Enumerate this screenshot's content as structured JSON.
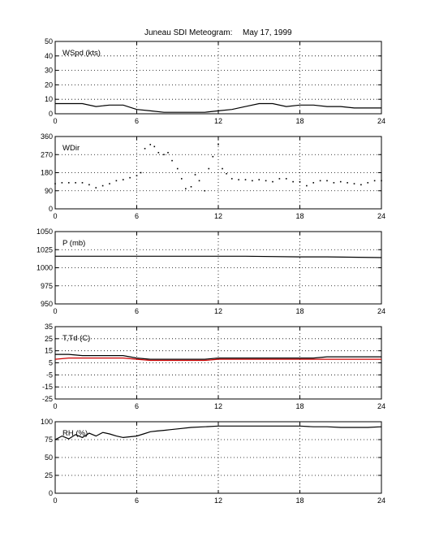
{
  "title": {
    "left": "Juneau SDI Meteogram:",
    "right": "May 17, 1999"
  },
  "chart_data": [
    {
      "type": "line",
      "label": "WSpd (kts)",
      "xlim": [
        0,
        24
      ],
      "ylim": [
        0,
        50
      ],
      "xticks": [
        0,
        6,
        12,
        18,
        24
      ],
      "yticks": [
        0,
        10,
        20,
        30,
        40,
        50
      ],
      "grid": true,
      "series": [
        {
          "color": "#000000",
          "style": "line",
          "x": [
            0,
            1,
            2,
            3,
            4,
            5,
            6,
            7,
            8,
            9,
            10,
            11,
            12,
            13,
            14,
            15,
            16,
            17,
            18,
            19,
            20,
            21,
            22,
            23,
            24
          ],
          "y": [
            7,
            7,
            7,
            5,
            6,
            6,
            3,
            2,
            1,
            1,
            1,
            1,
            2,
            3,
            5,
            7,
            7,
            5,
            6,
            6,
            5,
            5,
            4,
            4,
            4
          ]
        }
      ]
    },
    {
      "type": "scatter",
      "label": "WDir",
      "xlim": [
        0,
        24
      ],
      "ylim": [
        0,
        360
      ],
      "xticks": [
        0,
        6,
        12,
        18,
        24
      ],
      "yticks": [
        0,
        90,
        180,
        270,
        360
      ],
      "grid": true,
      "series": [
        {
          "color": "#000000",
          "style": "points",
          "x": [
            0,
            0.5,
            1,
            1.5,
            2,
            2.5,
            3,
            3.5,
            4,
            4.5,
            5,
            5.5,
            6,
            6.3,
            6.6,
            7,
            7.3,
            7.6,
            8,
            8.3,
            8.6,
            9,
            9.3,
            9.6,
            10,
            10.3,
            10.6,
            11,
            11.3,
            11.6,
            12,
            12.3,
            12.6,
            13,
            13.5,
            14,
            14.5,
            15,
            15.5,
            16,
            16.5,
            17,
            17.5,
            18,
            18.5,
            19,
            19.5,
            20,
            20.5,
            21,
            21.5,
            22,
            22.5,
            23,
            23.5,
            24
          ],
          "y": [
            125,
            130,
            130,
            130,
            130,
            120,
            105,
            115,
            125,
            140,
            145,
            155,
            165,
            180,
            300,
            320,
            310,
            280,
            270,
            280,
            240,
            200,
            150,
            100,
            110,
            170,
            140,
            90,
            200,
            260,
            320,
            200,
            175,
            150,
            145,
            145,
            140,
            145,
            140,
            135,
            150,
            150,
            135,
            135,
            115,
            130,
            140,
            140,
            130,
            135,
            130,
            125,
            120,
            130,
            140,
            140
          ]
        }
      ]
    },
    {
      "type": "line",
      "label": "P (mb)",
      "xlim": [
        0,
        24
      ],
      "ylim": [
        950,
        1050
      ],
      "xticks": [
        0,
        6,
        12,
        18,
        24
      ],
      "yticks": [
        950,
        975,
        1000,
        1025,
        1050
      ],
      "grid": true,
      "series": [
        {
          "color": "#000000",
          "style": "line",
          "x": [
            0,
            6,
            12,
            14,
            18,
            20,
            24
          ],
          "y": [
            1016,
            1016,
            1016,
            1016,
            1015,
            1015,
            1014
          ]
        }
      ]
    },
    {
      "type": "line",
      "label": "T,Td (C)",
      "xlim": [
        0,
        24
      ],
      "ylim": [
        -25,
        35
      ],
      "xticks": [
        0,
        6,
        12,
        18,
        24
      ],
      "yticks": [
        -25,
        -15,
        -5,
        5,
        15,
        25,
        35
      ],
      "grid": true,
      "series": [
        {
          "color": "#000000",
          "style": "line",
          "x": [
            0,
            1,
            2,
            3,
            4,
            5,
            6,
            7,
            8,
            9,
            10,
            11,
            12,
            13,
            14,
            15,
            16,
            17,
            18,
            19,
            20,
            21,
            22,
            23,
            24
          ],
          "y": [
            12,
            12,
            11,
            11,
            11,
            11,
            9,
            8,
            8,
            8,
            8,
            8,
            9,
            9,
            9,
            9,
            9,
            9,
            9,
            9,
            10,
            10,
            10,
            10,
            10
          ]
        },
        {
          "color": "#cc0000",
          "style": "line",
          "x": [
            0,
            1,
            2,
            3,
            4,
            5,
            6,
            7,
            8,
            9,
            10,
            11,
            12,
            13,
            14,
            15,
            16,
            17,
            18,
            19,
            20,
            21,
            22,
            23,
            24
          ],
          "y": [
            8,
            9,
            9,
            9,
            9,
            9,
            8,
            7,
            7,
            7,
            7,
            7,
            8,
            8,
            8,
            8,
            8,
            8,
            8,
            8,
            8,
            8,
            8,
            8,
            8
          ]
        }
      ]
    },
    {
      "type": "line",
      "label": "RH (%)",
      "xlim": [
        0,
        24
      ],
      "ylim": [
        0,
        100
      ],
      "xticks": [
        0,
        6,
        12,
        18,
        24
      ],
      "yticks": [
        0,
        25,
        50,
        75,
        100
      ],
      "grid": true,
      "series": [
        {
          "color": "#000000",
          "style": "line",
          "x": [
            0,
            0.5,
            1,
            1.5,
            2,
            2.5,
            3,
            3.5,
            4,
            4.5,
            5,
            5.5,
            6,
            6.5,
            7,
            7.5,
            8,
            8.5,
            9,
            10,
            11,
            12,
            13,
            14,
            15,
            16,
            17,
            18,
            19,
            20,
            21,
            22,
            23,
            24
          ],
          "y": [
            75,
            80,
            76,
            82,
            78,
            84,
            80,
            85,
            83,
            80,
            78,
            79,
            80,
            83,
            86,
            87,
            88,
            89,
            90,
            92,
            93,
            94,
            94,
            94,
            94,
            94,
            94,
            94,
            93,
            93,
            92,
            92,
            92,
            93
          ]
        }
      ]
    }
  ]
}
